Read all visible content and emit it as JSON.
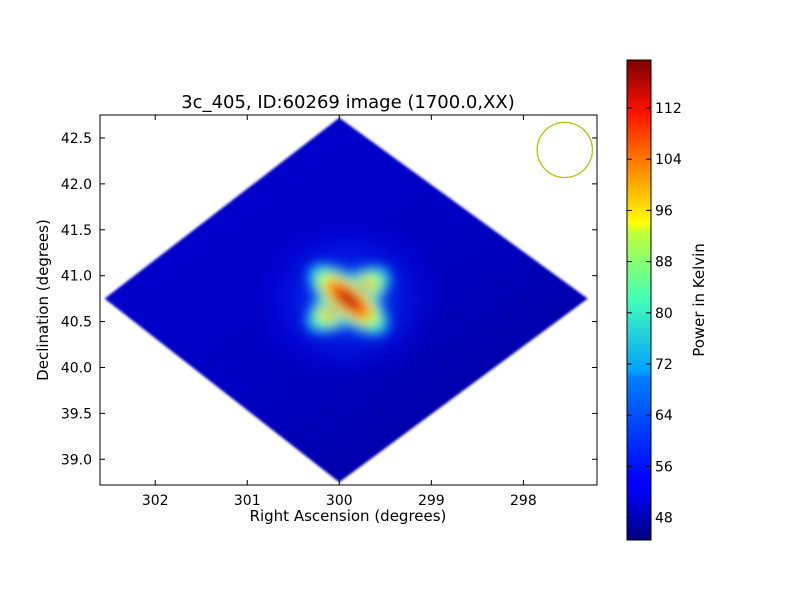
{
  "chart_data": {
    "type": "heatmap",
    "title": "3c_405, ID:60269 image (1700.0,XX)",
    "xlabel": "Right Ascension (degrees)",
    "ylabel": "Declination (degrees)",
    "x_ticks": [
      "302",
      "301",
      "300",
      "299",
      "298"
    ],
    "x_tick_values": [
      302,
      301,
      300,
      299,
      298
    ],
    "xlim": [
      302.6,
      297.2
    ],
    "y_ticks": [
      "39.0",
      "39.5",
      "40.0",
      "40.5",
      "41.0",
      "41.5",
      "42.0",
      "42.5"
    ],
    "y_tick_values": [
      39.0,
      39.5,
      40.0,
      40.5,
      41.0,
      41.5,
      42.0,
      42.5
    ],
    "ylim": [
      38.72,
      42.75
    ],
    "colorbar": {
      "label": "Power in Kelvin",
      "ticks": [
        "48",
        "56",
        "64",
        "72",
        "80",
        "88",
        "96",
        "104",
        "112"
      ],
      "tick_values": [
        48,
        56,
        64,
        72,
        80,
        88,
        96,
        104,
        112
      ],
      "range": [
        44.5,
        119.5
      ],
      "colormap": "jet"
    },
    "field_of_view": {
      "shape": "diamond",
      "vertices_ra_dec": [
        [
          300.0,
          42.72
        ],
        [
          297.3,
          40.75
        ],
        [
          300.0,
          38.75
        ],
        [
          302.55,
          40.75
        ]
      ],
      "background_value": 47
    },
    "source": {
      "ra": 299.9,
      "dec": 40.74,
      "peak_value": 119
    },
    "beam": {
      "ra": 297.55,
      "dec": 42.37,
      "radius_deg": 0.3,
      "color": "#bfbf00"
    }
  }
}
